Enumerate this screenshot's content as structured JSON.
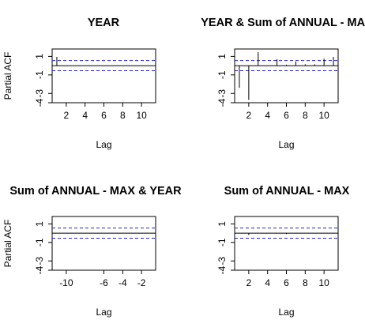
{
  "chart_data": [
    {
      "type": "bar",
      "title": "YEAR",
      "xlabel": "Lag",
      "ylabel": "Partial ACF",
      "xlim": [
        0.5,
        11.5
      ],
      "ylim": [
        -4,
        1.8
      ],
      "x_ticks": [
        2,
        4,
        6,
        8,
        10
      ],
      "y_ticks": [
        -4,
        -3,
        -1,
        1
      ],
      "conf_limit": 0.55,
      "lags": [
        1,
        2,
        3,
        4,
        5,
        6,
        7,
        8,
        9,
        10,
        11
      ],
      "values": [
        0.95,
        0.0,
        0.0,
        0.0,
        0.0,
        0.0,
        0.0,
        0.0,
        0.0,
        0.0,
        0.0
      ]
    },
    {
      "type": "bar",
      "title": "YEAR & Sum of ANNUAL - MAX",
      "xlabel": "Lag",
      "ylabel": "",
      "xlim": [
        0.5,
        11.5
      ],
      "ylim": [
        -4,
        1.8
      ],
      "x_ticks": [
        2,
        4,
        6,
        8,
        10
      ],
      "y_ticks": [
        -4,
        -3,
        -1,
        1
      ],
      "conf_limit": 0.55,
      "lags": [
        0,
        1,
        2,
        3,
        4,
        5,
        6,
        7,
        8,
        9,
        10,
        11
      ],
      "values": [
        0.0,
        -2.4,
        -3.7,
        1.45,
        0.0,
        0.7,
        0.1,
        0.45,
        0.15,
        0.15,
        0.75,
        0.95
      ]
    },
    {
      "type": "bar",
      "title": "Sum of ANNUAL - MAX & YEAR",
      "xlabel": "Lag",
      "ylabel": "Partial ACF",
      "xlim": [
        -11.5,
        -0.5
      ],
      "ylim": [
        -4,
        1.8
      ],
      "x_ticks": [
        -10,
        -6,
        -4,
        -2
      ],
      "y_ticks": [
        -4,
        -3,
        -1,
        1
      ],
      "conf_limit": 0.55,
      "lags": [
        -11,
        -10,
        -9,
        -8,
        -7,
        -6,
        -5,
        -4,
        -3,
        -2,
        -1
      ],
      "values": [
        0.0,
        0.0,
        0.0,
        0.0,
        0.0,
        0.0,
        0.0,
        0.0,
        0.0,
        0.0,
        0.0
      ]
    },
    {
      "type": "bar",
      "title": "Sum of ANNUAL - MAX",
      "xlabel": "Lag",
      "ylabel": "",
      "xlim": [
        0.5,
        11.5
      ],
      "ylim": [
        -4,
        1.8
      ],
      "x_ticks": [
        2,
        4,
        6,
        8,
        10
      ],
      "y_ticks": [
        -4,
        -3,
        -1,
        1
      ],
      "conf_limit": 0.55,
      "lags": [
        1,
        2,
        3,
        4,
        5,
        6,
        7,
        8,
        9,
        10,
        11
      ],
      "values": [
        0.0,
        -0.2,
        0.0,
        0.0,
        0.0,
        -0.1,
        0.0,
        0.0,
        0.0,
        0.0,
        0.0
      ]
    }
  ]
}
